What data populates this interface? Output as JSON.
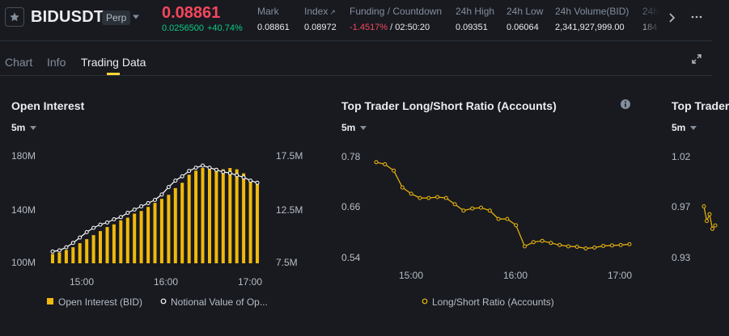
{
  "colors": {
    "background": "#181a20",
    "price_down": "#f6465d",
    "price_up": "#0ecb81",
    "accent": "#fcd535",
    "bar": "#f0b90b",
    "line_secondary": "#ffffff",
    "muted_text": "#848e9c"
  },
  "header": {
    "symbol": "BIDUSDT",
    "badge": "Perp",
    "last_price": "0.08861",
    "change_abs": "0.0256500",
    "change_pct": "+40.74%",
    "stats": [
      {
        "label": "Mark",
        "value": "0.08861"
      },
      {
        "label": "Index",
        "value": "0.08972"
      },
      {
        "label": "Funding / Countdown",
        "value_rate": "-1.4517%",
        "value_sep": "/",
        "value_countdown": "02:50:20"
      },
      {
        "label": "24h High",
        "value": "0.09351"
      },
      {
        "label": "24h Low",
        "value": "0.06064"
      },
      {
        "label": "24h Volume(BID)",
        "value": "2,341,927,999.00"
      },
      {
        "label": "24h",
        "value": "184"
      }
    ],
    "icons": {
      "favorite": "star-icon",
      "dropdown": "caret-down-icon",
      "scroll": "chevron-right-icon",
      "more": "more-horizontal-icon"
    }
  },
  "tabs": [
    {
      "label": "Chart"
    },
    {
      "label": "Info"
    },
    {
      "label": "Trading Data",
      "active": true
    }
  ],
  "panels": {
    "open_interest": {
      "title": "Open Interest",
      "interval": "5m"
    },
    "long_short": {
      "title": "Top Trader Long/Short Ratio (Accounts)",
      "interval": "5m"
    },
    "third": {
      "title": "Top Trader",
      "interval": "5m"
    }
  },
  "chart_data": [
    {
      "type": "bar",
      "title": "Open Interest",
      "x_ticks": [
        "15:00",
        "16:00",
        "17:00"
      ],
      "series": [
        {
          "name": "Open Interest (BID)",
          "kind": "bar",
          "axis": "left",
          "values": [
            107,
            108,
            110,
            112,
            115,
            118,
            121,
            124,
            127,
            129,
            132,
            134,
            137,
            139,
            142,
            145,
            148,
            151,
            156,
            160,
            166,
            169,
            171,
            170,
            171,
            170,
            171,
            170,
            167,
            162,
            161
          ]
        },
        {
          "name": "Notional Value of Op...",
          "kind": "line",
          "axis": "right",
          "values": [
            8.6,
            8.7,
            9.0,
            9.4,
            9.9,
            10.4,
            10.8,
            11.1,
            11.3,
            11.6,
            11.8,
            12.2,
            12.5,
            12.8,
            13.1,
            13.4,
            13.9,
            14.6,
            15.2,
            15.6,
            16.1,
            16.4,
            16.6,
            16.4,
            16.2,
            16.0,
            15.9,
            15.7,
            15.5,
            15.2,
            15.0
          ]
        }
      ],
      "y_left": {
        "ticks": [
          "180M",
          "140M",
          "100M"
        ],
        "range": [
          100,
          180
        ]
      },
      "y_right": {
        "ticks": [
          "17.5M",
          "12.5M",
          "7.5M"
        ],
        "range": [
          7.5,
          17.5
        ]
      }
    },
    {
      "type": "line",
      "title": "Top Trader Long/Short Ratio (Accounts)",
      "x_ticks": [
        "15:00",
        "16:00",
        "17:00"
      ],
      "series": [
        {
          "name": "Long/Short Ratio (Accounts)",
          "values": [
            0.765,
            0.76,
            0.745,
            0.705,
            0.69,
            0.68,
            0.68,
            0.682,
            0.68,
            0.665,
            0.65,
            0.655,
            0.657,
            0.65,
            0.63,
            0.63,
            0.615,
            0.565,
            0.575,
            0.578,
            0.573,
            0.568,
            0.565,
            0.564,
            0.56,
            0.562,
            0.566,
            0.567,
            0.568,
            0.57
          ]
        }
      ],
      "y": {
        "ticks": [
          "0.78",
          "0.66",
          "0.54"
        ],
        "range": [
          0.54,
          0.78
        ]
      }
    },
    {
      "type": "line",
      "title": "Top Trader",
      "series": [
        {
          "name": "",
          "values": [
            0.975,
            0.962,
            0.968,
            0.955,
            0.958
          ]
        }
      ],
      "y": {
        "ticks": [
          "1.02",
          "0.97",
          "0.93"
        ],
        "range": [
          0.93,
          1.02
        ]
      }
    }
  ]
}
